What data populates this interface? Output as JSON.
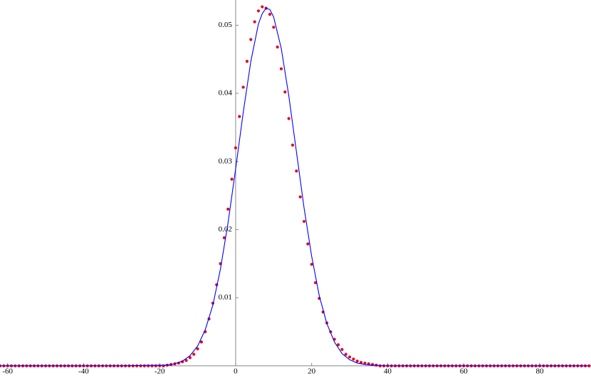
{
  "chart_data": {
    "type": "scatter",
    "xlim": [
      -62,
      93.5
    ],
    "ylim": [
      0,
      0.0537
    ],
    "xticks": [
      -60,
      -40,
      -20,
      0,
      20,
      40,
      60,
      80
    ],
    "yticks": [
      0.01,
      0.02,
      0.03,
      0.04,
      0.05
    ],
    "series": [
      {
        "style": "points",
        "color": "#e8001c",
        "x": [
          -62,
          -61,
          -60,
          -59,
          -58,
          -57,
          -56,
          -55,
          -54,
          -53,
          -52,
          -51,
          -50,
          -49,
          -48,
          -47,
          -46,
          -45,
          -44,
          -43,
          -42,
          -41,
          -40,
          -39,
          -38,
          -37,
          -36,
          -35,
          -34,
          -33,
          -32,
          -31,
          -30,
          -29,
          -28,
          -27,
          -26,
          -25,
          -24,
          -23,
          -22,
          -21,
          -20,
          -19,
          -18,
          -17,
          -16,
          -15,
          -14,
          -13,
          -12,
          -11,
          -10,
          -9,
          -8,
          -7,
          -6,
          -5,
          -4,
          -3,
          -2,
          -1,
          0,
          1,
          2,
          3,
          4,
          5,
          6,
          7,
          8,
          9,
          10,
          11,
          12,
          13,
          14,
          15,
          16,
          17,
          18,
          19,
          20,
          21,
          22,
          23,
          24,
          25,
          26,
          27,
          28,
          29,
          30,
          31,
          32,
          33,
          34,
          35,
          36,
          37,
          38,
          39,
          40,
          41,
          42,
          43,
          44,
          45,
          46,
          47,
          48,
          49,
          50,
          51,
          52,
          53,
          54,
          55,
          56,
          57,
          58,
          59,
          60,
          61,
          62,
          63,
          64,
          65,
          66,
          67,
          68,
          69,
          70,
          71,
          72,
          73,
          74,
          75,
          76,
          77,
          78,
          79,
          80,
          81,
          82,
          83,
          84,
          85,
          86,
          87,
          88,
          89,
          90,
          91,
          92,
          93
        ],
        "values": [
          0,
          0,
          0,
          0,
          0,
          0,
          0,
          0,
          0,
          0,
          0,
          0,
          0,
          0,
          0,
          0,
          0,
          0,
          0,
          0,
          0,
          0,
          0,
          0,
          0,
          0,
          0,
          0,
          0,
          0,
          0,
          0,
          0,
          0,
          0,
          0,
          0,
          0,
          0,
          0,
          0,
          0,
          0,
          0,
          0.0001,
          0.0002,
          0.0003,
          0.0004,
          0.0006,
          0.0008,
          0.0012,
          0.0017,
          0.0025,
          0.0035,
          0.005,
          0.0069,
          0.0092,
          0.0119,
          0.015,
          0.0188,
          0.023,
          0.0274,
          0.032,
          0.0366,
          0.0409,
          0.0447,
          0.0479,
          0.0505,
          0.0521,
          0.0527,
          0.0525,
          0.0516,
          0.0497,
          0.0468,
          0.0436,
          0.0402,
          0.0363,
          0.0324,
          0.0286,
          0.0248,
          0.0212,
          0.0179,
          0.0149,
          0.0122,
          0.0099,
          0.0079,
          0.0063,
          0.005,
          0.0039,
          0.0031,
          0.0024,
          0.0017,
          0.0013,
          0.001,
          0.0007,
          0.0005,
          0.0004,
          0.0003,
          0.0002,
          0.0001,
          0,
          0,
          0,
          0,
          0,
          0,
          0,
          0,
          0,
          0,
          0,
          0,
          0,
          0,
          0,
          0,
          0,
          0,
          0,
          0,
          0,
          0,
          0,
          0,
          0,
          0,
          0,
          0,
          0,
          0,
          0,
          0,
          0,
          0,
          0,
          0,
          0,
          0,
          0,
          0,
          0,
          0,
          0,
          0,
          0,
          0,
          0,
          0,
          0,
          0,
          0,
          0,
          0,
          0,
          0,
          0
        ]
      },
      {
        "style": "line",
        "color": "#0000ff",
        "x": [
          -62,
          -30,
          -20,
          -18,
          -16,
          -14,
          -12,
          -10,
          -8,
          -6,
          -4,
          -2,
          0,
          2,
          4,
          6,
          7,
          8,
          9,
          10,
          12,
          14,
          16,
          18,
          20,
          22,
          24,
          26,
          28,
          30,
          32,
          34,
          36,
          40,
          60,
          93
        ],
        "values": [
          0,
          0,
          0.0001,
          0.0001,
          0.0003,
          0.0007,
          0.0015,
          0.0029,
          0.0053,
          0.0089,
          0.0142,
          0.021,
          0.0289,
          0.0372,
          0.0447,
          0.0502,
          0.0517,
          0.0525,
          0.0523,
          0.0512,
          0.0466,
          0.0396,
          0.0314,
          0.0232,
          0.0161,
          0.0103,
          0.0062,
          0.0035,
          0.0018,
          0.0009,
          0.0004,
          0.0002,
          0.0001,
          0,
          0,
          0
        ]
      }
    ]
  }
}
